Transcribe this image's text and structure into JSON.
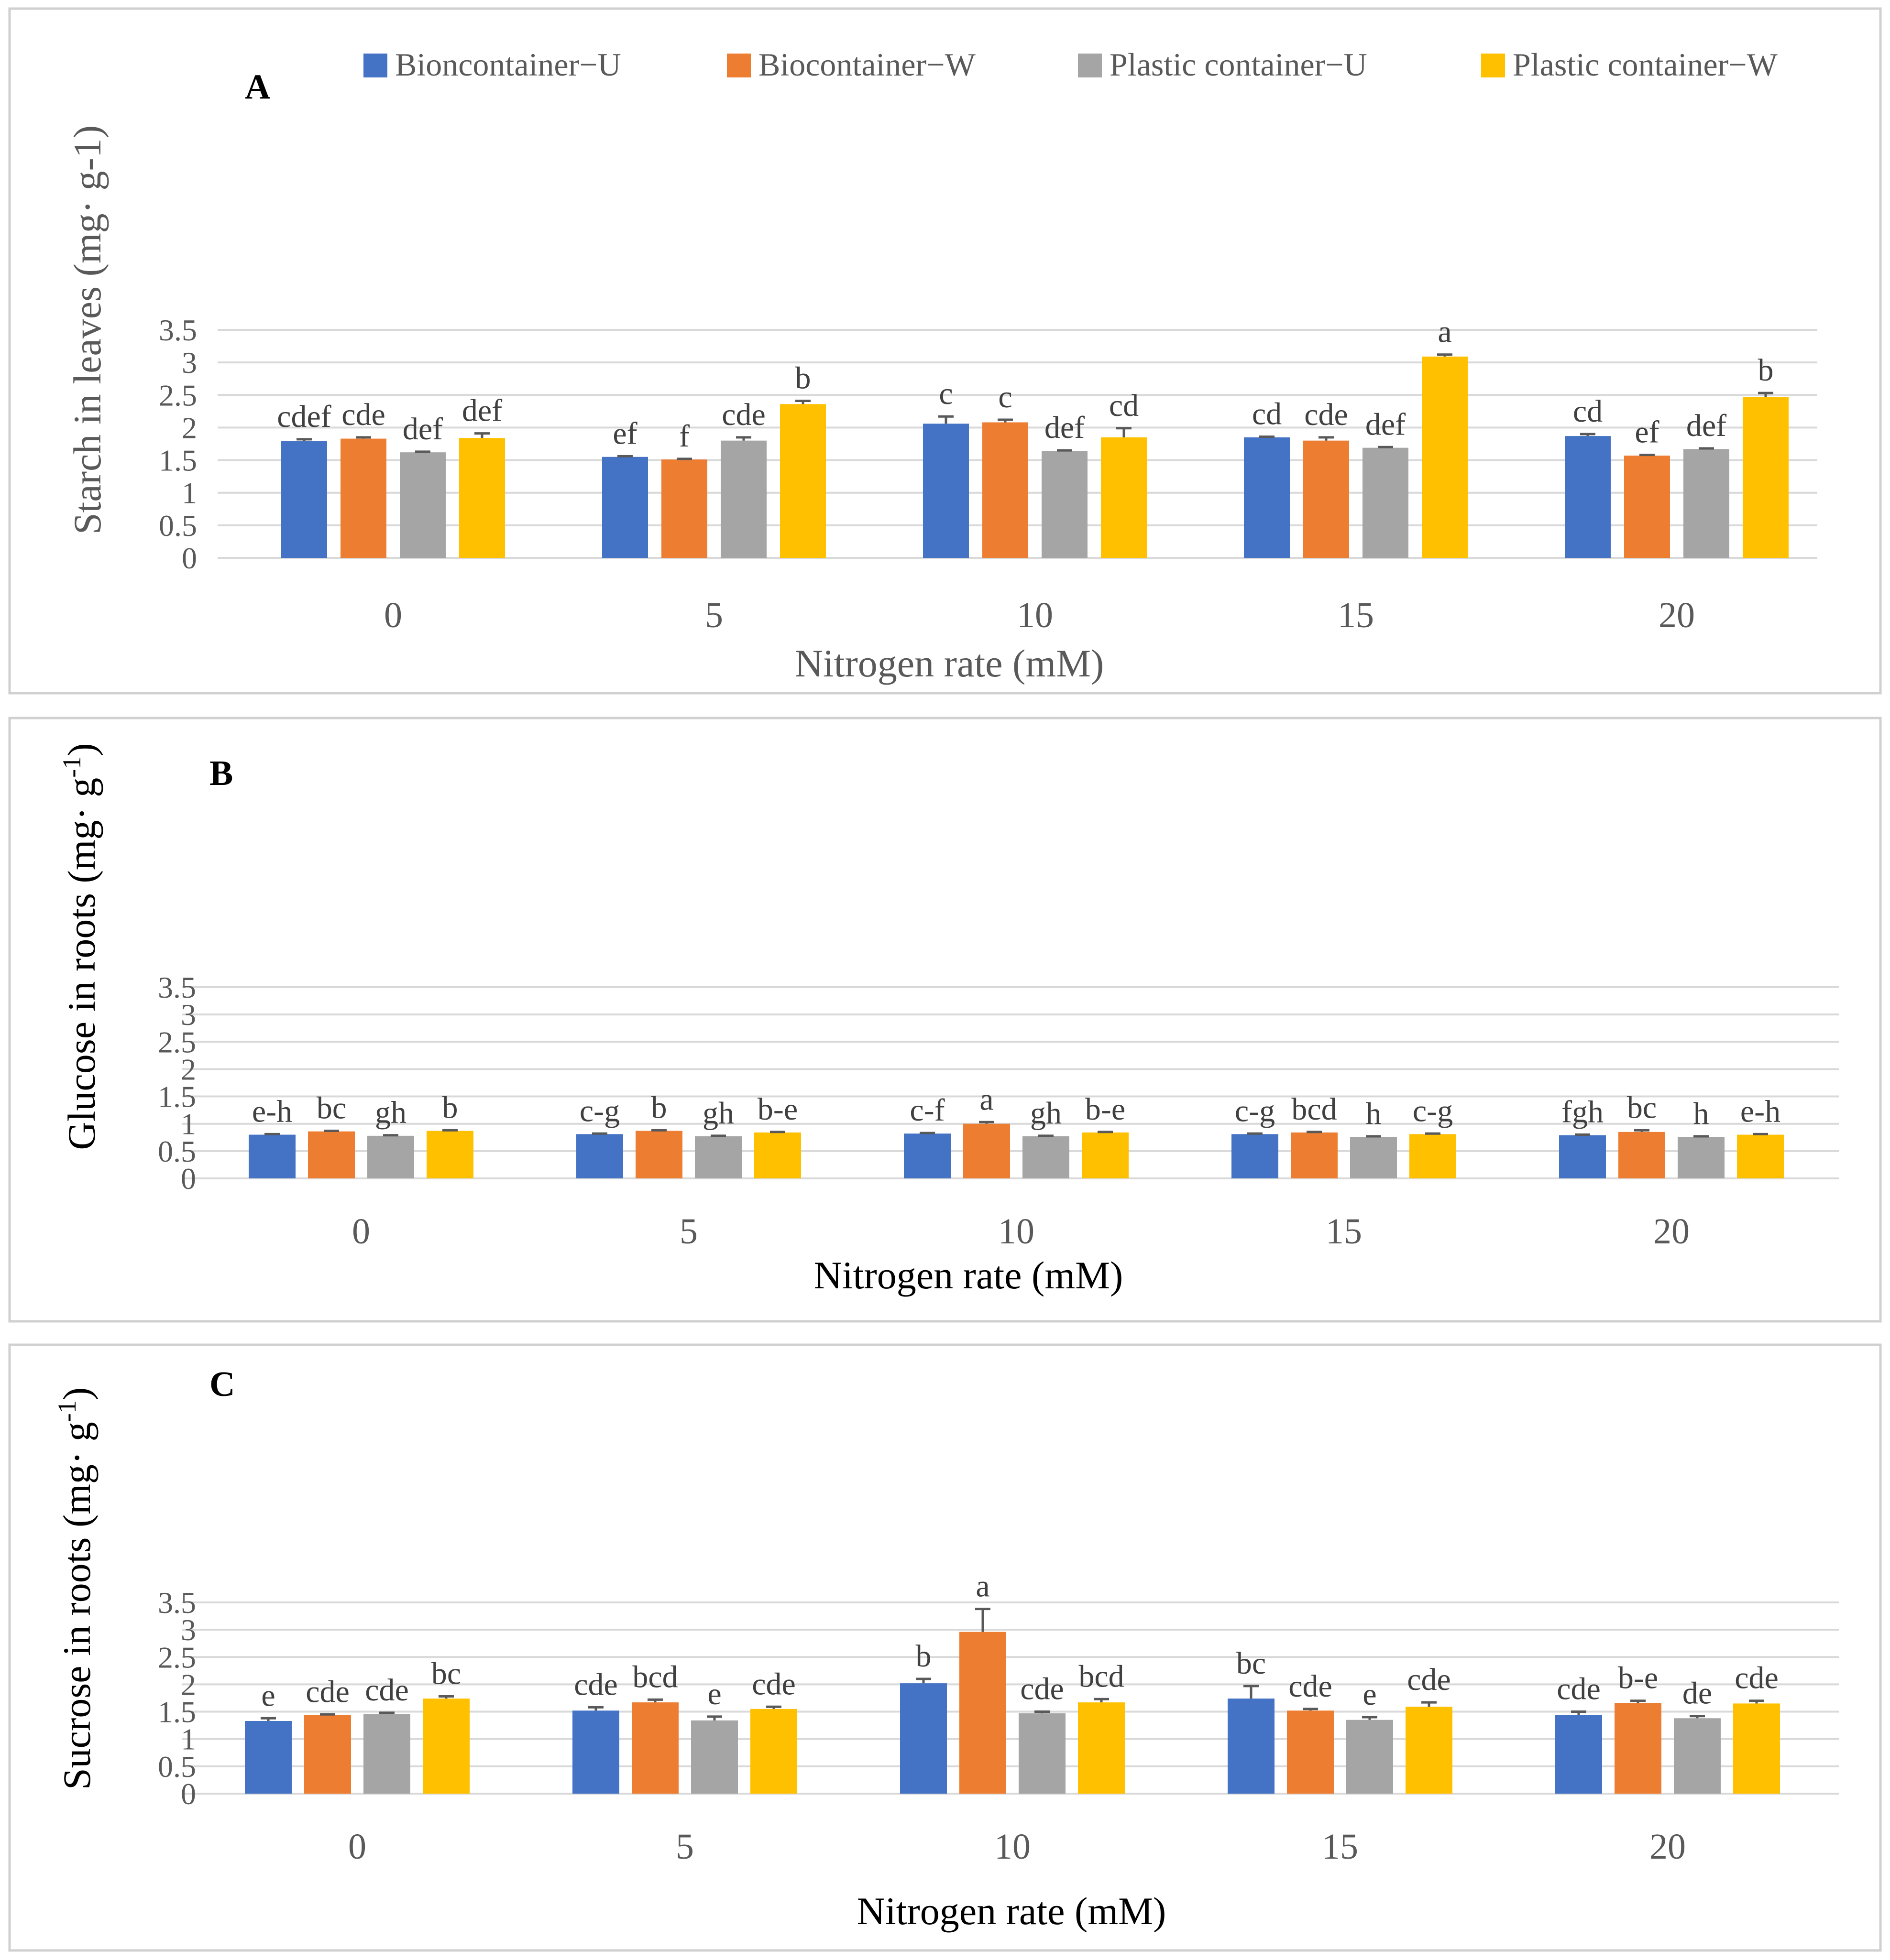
{
  "legend": {
    "series_names": [
      "Bioncontainer−U",
      "Biocontainer−W",
      "Plastic container−U",
      "Plastic container−W"
    ],
    "colors": [
      "#4472c4",
      "#ed7d31",
      "#a5a5a5",
      "#ffc000"
    ]
  },
  "chart_data": [
    {
      "type": "bar",
      "panel": "A",
      "title": "",
      "xlabel": "Nitrogen rate (mM)",
      "ylabel": "Starch in leaves (mg· g-1)",
      "ylabel_parts": [
        "Starch in leaves (mg· g-1)"
      ],
      "categories": [
        "0",
        "5",
        "10",
        "15",
        "20"
      ],
      "ylim": [
        0,
        3.5
      ],
      "yticks": [
        "0",
        "0.5",
        "1",
        "1.5",
        "2",
        "2.5",
        "3",
        "3.5"
      ],
      "grid": true,
      "series": [
        {
          "name": "Bioncontainer−U",
          "values": [
            1.79,
            1.55,
            2.06,
            1.85,
            1.87
          ],
          "errors": [
            0.03,
            0.01,
            0.11,
            0.01,
            0.03
          ],
          "letters": [
            "cdef",
            "ef",
            "c",
            "cd",
            "cd"
          ]
        },
        {
          "name": "Biocontainer−W",
          "values": [
            1.83,
            1.51,
            2.08,
            1.8,
            1.57
          ],
          "errors": [
            0.02,
            0.01,
            0.04,
            0.05,
            0.01
          ],
          "letters": [
            "cde",
            "f",
            "c",
            "cde",
            "ef"
          ]
        },
        {
          "name": "Plastic container−U",
          "values": [
            1.62,
            1.8,
            1.64,
            1.69,
            1.67
          ],
          "errors": [
            0.01,
            0.05,
            0.01,
            0.01,
            0.01
          ],
          "letters": [
            "def",
            "cde",
            "def",
            "def",
            "def"
          ]
        },
        {
          "name": "Plastic container−W",
          "values": [
            1.84,
            2.36,
            1.85,
            3.09,
            2.47
          ],
          "errors": [
            0.07,
            0.05,
            0.14,
            0.03,
            0.06
          ],
          "letters": [
            "def",
            "b",
            "cd",
            "a",
            "b"
          ]
        }
      ]
    },
    {
      "type": "bar",
      "panel": "B",
      "title": "",
      "xlabel": "Nitrogen rate (mM)",
      "ylabel": "Glucose in roots (mg· g-1)",
      "ylabel_parts": [
        "Glucose in roots (mg· g",
        "-1",
        ")"
      ],
      "categories": [
        "0",
        "5",
        "10",
        "15",
        "20"
      ],
      "ylim": [
        0,
        3.5
      ],
      "yticks": [
        "0",
        "0.5",
        "1",
        "1.5",
        "2",
        "2.5",
        "3",
        "3.5"
      ],
      "grid": true,
      "series": [
        {
          "name": "Bioncontainer−U",
          "values": [
            0.8,
            0.81,
            0.82,
            0.81,
            0.79
          ],
          "errors": [
            0.01,
            0.01,
            0.01,
            0.01,
            0.01
          ],
          "letters": [
            "e-h",
            "c-g",
            "c-f",
            "c-g",
            "fgh"
          ]
        },
        {
          "name": "Biocontainer−W",
          "values": [
            0.86,
            0.87,
            1.0,
            0.84,
            0.85
          ],
          "errors": [
            0.01,
            0.01,
            0.03,
            0.01,
            0.03
          ],
          "letters": [
            "bc",
            "b",
            "a",
            "bcd",
            "bc"
          ]
        },
        {
          "name": "Plastic container−U",
          "values": [
            0.78,
            0.77,
            0.77,
            0.76,
            0.76
          ],
          "errors": [
            0.01,
            0.01,
            0.01,
            0.01,
            0.01
          ],
          "letters": [
            "gh",
            "gh",
            "gh",
            "h",
            "h"
          ]
        },
        {
          "name": "Plastic container−W",
          "values": [
            0.87,
            0.84,
            0.84,
            0.81,
            0.8
          ],
          "errors": [
            0.01,
            0.01,
            0.01,
            0.01,
            0.01
          ],
          "letters": [
            "b",
            "b-e",
            "b-e",
            "c-g",
            "e-h"
          ]
        }
      ]
    },
    {
      "type": "bar",
      "panel": "C",
      "title": "",
      "xlabel": "Nitrogen rate (mM)",
      "ylabel": "Sucrose in roots (mg· g-1)",
      "ylabel_parts": [
        "Sucrose in roots (mg· g",
        "-1",
        ")"
      ],
      "categories": [
        "0",
        "5",
        "10",
        "15",
        "20"
      ],
      "ylim": [
        0,
        3.5
      ],
      "yticks": [
        "0",
        "0.5",
        "1",
        "1.5",
        "2",
        "2.5",
        "3",
        "3.5"
      ],
      "grid": true,
      "series": [
        {
          "name": "Bioncontainer−U",
          "values": [
            1.33,
            1.52,
            2.02,
            1.74,
            1.44
          ],
          "errors": [
            0.05,
            0.06,
            0.08,
            0.23,
            0.06
          ],
          "letters": [
            "e",
            "cde",
            "b",
            "bc",
            "cde"
          ]
        },
        {
          "name": "Biocontainer−W",
          "values": [
            1.44,
            1.67,
            2.96,
            1.52,
            1.66
          ],
          "errors": [
            0.01,
            0.05,
            0.42,
            0.03,
            0.04
          ],
          "letters": [
            "cde",
            "bcd",
            "a",
            "cde",
            "b-e"
          ]
        },
        {
          "name": "Plastic container−U",
          "values": [
            1.46,
            1.34,
            1.47,
            1.35,
            1.38
          ],
          "errors": [
            0.02,
            0.07,
            0.03,
            0.05,
            0.04
          ],
          "letters": [
            "cde",
            "e",
            "cde",
            "e",
            "de"
          ]
        },
        {
          "name": "Plastic container−W",
          "values": [
            1.74,
            1.55,
            1.67,
            1.59,
            1.65
          ],
          "errors": [
            0.04,
            0.04,
            0.06,
            0.08,
            0.05
          ],
          "letters": [
            "bc",
            "cde",
            "bcd",
            "cde",
            "cde"
          ]
        }
      ]
    }
  ]
}
